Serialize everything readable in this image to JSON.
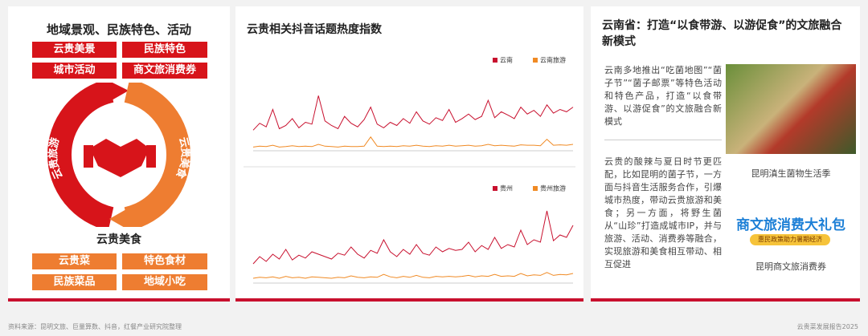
{
  "left": {
    "title": "地域景观、民族特色、活动",
    "top_tags": [
      "云贵美景",
      "民族特色",
      "城市活动",
      "商文旅消费券"
    ],
    "cycle_left": "云贵旅游",
    "cycle_right": "云贵美食",
    "bottom_title": "云贵美食",
    "bottom_tags": [
      "云贵菜",
      "特色食材",
      "民族菜品",
      "地域小吃"
    ]
  },
  "middle": {
    "title": "云贵相关抖音话题热度指数",
    "charts": [
      {
        "type": "line",
        "ylim": [
          0,
          180
        ],
        "series": [
          {
            "name": "云南",
            "color": "#c8102e",
            "values": [
              45,
              60,
              52,
              90,
              48,
              55,
              70,
              50,
              62,
              58,
              120,
              65,
              55,
              48,
              75,
              60,
              52,
              68,
              95,
              58,
              50,
              62,
              55,
              70,
              60,
              85,
              65,
              58,
              72,
              66,
              90,
              62,
              70,
              80,
              68,
              75,
              110,
              72,
              85,
              78,
              70,
              95,
              80,
              88,
              75,
              100,
              82,
              90,
              85,
              95
            ]
          },
          {
            "name": "云南旅游",
            "color": "#f08a24",
            "values": [
              8,
              10,
              9,
              12,
              8,
              9,
              11,
              9,
              10,
              9,
              14,
              10,
              9,
              8,
              10,
              9,
              9,
              10,
              30,
              10,
              9,
              10,
              9,
              11,
              10,
              12,
              10,
              9,
              11,
              10,
              12,
              10,
              11,
              12,
              10,
              11,
              14,
              11,
              12,
              11,
              10,
              13,
              12,
              12,
              11,
              25,
              12,
              13,
              12,
              14
            ]
          }
        ]
      },
      {
        "type": "line",
        "ylim": [
          0,
          180
        ],
        "series": [
          {
            "name": "贵州",
            "color": "#c8102e",
            "values": [
              40,
              55,
              45,
              60,
              50,
              70,
              48,
              58,
              52,
              65,
              60,
              55,
              50,
              62,
              58,
              75,
              60,
              52,
              68,
              62,
              90,
              65,
              55,
              70,
              60,
              80,
              62,
              58,
              75,
              65,
              72,
              68,
              70,
              85,
              65,
              78,
              70,
              95,
              72,
              80,
              75,
              110,
              80,
              90,
              85,
              150,
              88,
              100,
              95,
              120
            ]
          },
          {
            "name": "贵州旅游",
            "color": "#f08a24",
            "values": [
              10,
              12,
              11,
              13,
              10,
              14,
              11,
              12,
              10,
              13,
              12,
              11,
              10,
              12,
              11,
              15,
              12,
              11,
              13,
              12,
              18,
              13,
              11,
              14,
              12,
              16,
              12,
              11,
              14,
              13,
              14,
              13,
              14,
              16,
              13,
              15,
              14,
              18,
              14,
              15,
              14,
              20,
              15,
              17,
              16,
              22,
              16,
              18,
              17,
              20
            ]
          }
        ]
      }
    ]
  },
  "right": {
    "title": "云南省：打造“以食带游、以游促食”的文旅融合新模式",
    "para1": "云南多地推出“吃菌地图”“菌子节”“菌子邮票”等特色活动和特色产品，打造“以食带游、以游促食”的文旅融合新模式",
    "para2": "云贵的酸辣与夏日时节更匹配，比如昆明的菌子节，一方面与抖音生活服务合作，引爆城市热度，带动云贵旅游和美食；另一方面，将野生菌从“山珍”打造成城市IP，并与旅游、活动、消费券等融合，实现旅游和美食相互带动、相互促进",
    "caption1": "昆明滇生菌物生活季",
    "banner_title": "商文旅消费大礼包",
    "banner_sub": "惠民政策助力暑期经济",
    "caption2": "昆明商文旅消费券"
  },
  "footer": {
    "source": "资料来源：昆明文旅、巨量算数、抖音，红餐产业研究院整理",
    "report": "云贵菜发展报告2025"
  }
}
